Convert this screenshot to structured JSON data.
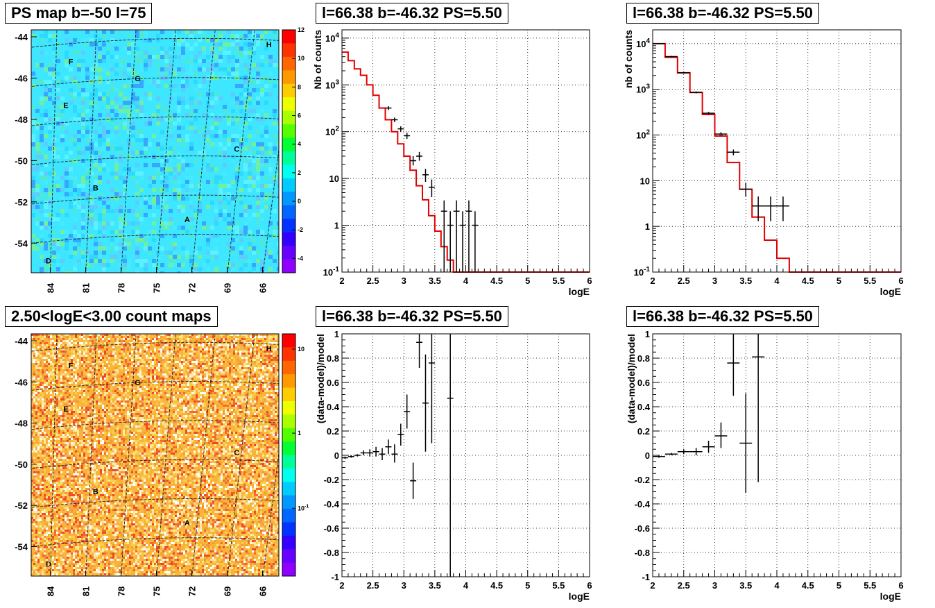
{
  "titles": {
    "map_top": "PS map b=-50 l=75",
    "map_bottom": "2.50<logE<3.00 count maps",
    "spec1": "l=66.38 b=-46.32 PS=5.50",
    "spec2": "l=66.38 b=-46.32 PS=5.50",
    "res1": "l=66.38 b=-46.32 PS=5.50",
    "res2": "l=66.38 b=-46.32 PS=5.50"
  },
  "colors": {
    "model": "#e00000",
    "data": "#000000",
    "map_top_bg": "#3ee6ff",
    "map_bottom_bg": "#f9b23a"
  },
  "chart_data": [
    {
      "id": "map_top",
      "type": "heatmap",
      "title": "PS map b=-50 l=75",
      "x_ticks": [
        "84",
        "81",
        "78",
        "75",
        "72",
        "69",
        "66"
      ],
      "y_ticks": [
        "-44",
        "-46",
        "-48",
        "-50",
        "-52",
        "-54"
      ],
      "colorbar_ticks": [
        "12",
        "10",
        "8",
        "6",
        "4",
        "2",
        "0",
        "-2",
        "-4"
      ],
      "colorbar_range": [
        -5,
        12
      ],
      "markers": [
        "A",
        "B",
        "C",
        "D",
        "E",
        "F",
        "G",
        "H"
      ]
    },
    {
      "id": "spec1",
      "type": "line",
      "title": "l=66.38 b=-46.32 PS=5.50",
      "xlabel": "logE",
      "ylabel": "Nb of counts",
      "xlim": [
        2,
        6
      ],
      "ylim": [
        0.1,
        15000
      ],
      "ylog": true,
      "x_ticks": [
        "2",
        "2.5",
        "3",
        "3.5",
        "4",
        "4.5",
        "5",
        "5.5",
        "6"
      ],
      "y_ticks": [
        {
          "v": 0.1,
          "label": "10^-1"
        },
        {
          "v": 1,
          "label": "1"
        },
        {
          "v": 10,
          "label": "10"
        },
        {
          "v": 100,
          "label": "10^2"
        },
        {
          "v": 1000,
          "label": "10^3"
        },
        {
          "v": 10000,
          "label": "10^4"
        }
      ],
      "model_edges": [
        2.0,
        2.1,
        2.2,
        2.3,
        2.4,
        2.5,
        2.6,
        2.7,
        2.8,
        2.9,
        3.0,
        3.1,
        3.2,
        3.3,
        3.4,
        3.5,
        3.6,
        3.7,
        3.8,
        3.9,
        4.0,
        4.1,
        4.2,
        6.0
      ],
      "model_values": [
        5000,
        3300,
        2200,
        1600,
        1000,
        600,
        320,
        180,
        100,
        55,
        30,
        15,
        7,
        3.5,
        1.6,
        0.75,
        0.35,
        0.18,
        0.1,
        0.1,
        0.1,
        0.1,
        0.1
      ],
      "data_points": [
        {
          "x": 2.75,
          "y": 320,
          "lo": 290,
          "hi": 350
        },
        {
          "x": 2.85,
          "y": 180,
          "lo": 160,
          "hi": 200
        },
        {
          "x": 2.95,
          "y": 115,
          "lo": 100,
          "hi": 130
        },
        {
          "x": 3.05,
          "y": 82,
          "lo": 70,
          "hi": 95
        },
        {
          "x": 3.15,
          "y": 24,
          "lo": 19,
          "hi": 30
        },
        {
          "x": 3.25,
          "y": 30,
          "lo": 24,
          "hi": 37
        },
        {
          "x": 3.35,
          "y": 12,
          "lo": 8.5,
          "hi": 16
        },
        {
          "x": 3.45,
          "y": 6.5,
          "lo": 4,
          "hi": 9.5
        },
        {
          "x": 3.65,
          "y": 2,
          "lo": 0.1,
          "hi": 3.4
        },
        {
          "x": 3.75,
          "y": 1,
          "lo": 0.1,
          "hi": 2
        },
        {
          "x": 3.85,
          "y": 2,
          "lo": 0.1,
          "hi": 3.4
        },
        {
          "x": 3.95,
          "y": 1,
          "lo": 0.1,
          "hi": 2
        },
        {
          "x": 4.05,
          "y": 2,
          "lo": 0.1,
          "hi": 3.4
        },
        {
          "x": 4.15,
          "y": 1,
          "lo": 0.1,
          "hi": 2
        }
      ],
      "data_half_width": 0.05
    },
    {
      "id": "spec2",
      "type": "line",
      "title": "l=66.38 b=-46.32 PS=5.50",
      "xlabel": "logE",
      "ylabel": "nb of counts",
      "xlim": [
        2,
        6
      ],
      "ylim": [
        0.1,
        20000
      ],
      "ylog": true,
      "x_ticks": [
        "2",
        "2.5",
        "3",
        "3.5",
        "4",
        "4.5",
        "5",
        "5.5",
        "6"
      ],
      "y_ticks": [
        {
          "v": 0.1,
          "label": "10^-1"
        },
        {
          "v": 1,
          "label": "1"
        },
        {
          "v": 10,
          "label": "10"
        },
        {
          "v": 100,
          "label": "10^2"
        },
        {
          "v": 1000,
          "label": "10^3"
        },
        {
          "v": 10000,
          "label": "10^4"
        }
      ],
      "model_edges": [
        2.0,
        2.2,
        2.4,
        2.6,
        2.8,
        3.0,
        3.2,
        3.4,
        3.6,
        3.8,
        4.0,
        4.2,
        6.0
      ],
      "model_values": [
        10000,
        5000,
        2300,
        850,
        280,
        95,
        25,
        6.5,
        1.6,
        0.5,
        0.2,
        0.1
      ],
      "data_points": [
        {
          "x": 2.1,
          "y": 10000,
          "lo": 9700,
          "hi": 10300
        },
        {
          "x": 2.3,
          "y": 5200,
          "lo": 5000,
          "hi": 5400
        },
        {
          "x": 2.5,
          "y": 2300,
          "lo": 2200,
          "hi": 2400
        },
        {
          "x": 2.7,
          "y": 860,
          "lo": 820,
          "hi": 900
        },
        {
          "x": 2.9,
          "y": 300,
          "lo": 280,
          "hi": 320
        },
        {
          "x": 3.1,
          "y": 105,
          "lo": 95,
          "hi": 115
        },
        {
          "x": 3.3,
          "y": 42,
          "lo": 36,
          "hi": 48
        },
        {
          "x": 3.5,
          "y": 6.5,
          "lo": 4.5,
          "hi": 9
        },
        {
          "x": 3.7,
          "y": 2.8,
          "lo": 1.3,
          "hi": 4.5
        },
        {
          "x": 3.9,
          "y": 2.8,
          "lo": 1.3,
          "hi": 4.5
        },
        {
          "x": 4.1,
          "y": 2.8,
          "lo": 1.3,
          "hi": 4.5
        }
      ],
      "data_half_width": 0.1
    },
    {
      "id": "map_bottom",
      "type": "heatmap",
      "title": "2.50<logE<3.00 count maps",
      "x_ticks": [
        "84",
        "81",
        "78",
        "75",
        "72",
        "69",
        "66"
      ],
      "y_ticks": [
        "-44",
        "-46",
        "-48",
        "-50",
        "-52",
        "-54"
      ],
      "colorbar_ticks": [
        {
          "label": "10",
          "exp": ""
        },
        {
          "label": "1",
          "exp": ""
        },
        {
          "label": "10",
          "exp": "-1"
        }
      ],
      "markers": [
        "A",
        "B",
        "C",
        "D",
        "E",
        "F",
        "G",
        "H"
      ]
    },
    {
      "id": "res1",
      "type": "scatter",
      "title": "l=66.38 b=-46.32 PS=5.50",
      "xlabel": "logE",
      "ylabel": "(data-model)/model",
      "xlim": [
        2,
        6
      ],
      "ylim": [
        -1,
        1
      ],
      "x_ticks": [
        "2",
        "2.5",
        "3",
        "3.5",
        "4",
        "4.5",
        "5",
        "5.5",
        "6"
      ],
      "y_ticks": [
        "1",
        "0.8",
        "0.6",
        "0.4",
        "0.2",
        "0",
        "-0.2",
        "-0.4",
        "-0.6",
        "-0.8",
        "-1"
      ],
      "points": [
        {
          "x": 2.05,
          "y": -0.02,
          "lo": -0.03,
          "hi": -0.01
        },
        {
          "x": 2.15,
          "y": -0.01,
          "lo": -0.02,
          "hi": 0.0
        },
        {
          "x": 2.25,
          "y": 0.0,
          "lo": -0.01,
          "hi": 0.01
        },
        {
          "x": 2.35,
          "y": 0.02,
          "lo": 0.0,
          "hi": 0.04
        },
        {
          "x": 2.45,
          "y": 0.02,
          "lo": -0.01,
          "hi": 0.05
        },
        {
          "x": 2.55,
          "y": 0.03,
          "lo": -0.01,
          "hi": 0.07
        },
        {
          "x": 2.65,
          "y": 0.01,
          "lo": -0.04,
          "hi": 0.06
        },
        {
          "x": 2.75,
          "y": 0.07,
          "lo": 0.01,
          "hi": 0.13
        },
        {
          "x": 2.85,
          "y": 0.01,
          "lo": -0.06,
          "hi": 0.09
        },
        {
          "x": 2.95,
          "y": 0.17,
          "lo": 0.08,
          "hi": 0.26
        },
        {
          "x": 3.05,
          "y": 0.36,
          "lo": 0.22,
          "hi": 0.5
        },
        {
          "x": 3.15,
          "y": -0.21,
          "lo": -0.36,
          "hi": -0.06
        },
        {
          "x": 3.25,
          "y": 0.93,
          "lo": 0.72,
          "hi": 1.2
        },
        {
          "x": 3.35,
          "y": 0.43,
          "lo": 0.03,
          "hi": 0.83
        },
        {
          "x": 3.45,
          "y": 0.76,
          "lo": 0.1,
          "hi": 1.4
        },
        {
          "x": 3.75,
          "y": 0.47,
          "lo": -1.2,
          "hi": 2.0
        }
      ],
      "half_width": 0.05
    },
    {
      "id": "res2",
      "type": "scatter",
      "title": "l=66.38 b=-46.32 PS=5.50",
      "xlabel": "logE",
      "ylabel": "(data-model)/model",
      "xlim": [
        2,
        6
      ],
      "ylim": [
        -1,
        1
      ],
      "x_ticks": [
        "2",
        "2.5",
        "3",
        "3.5",
        "4",
        "4.5",
        "5",
        "5.5",
        "6"
      ],
      "y_ticks": [
        "1",
        "0.8",
        "0.6",
        "0.4",
        "0.2",
        "0",
        "-0.2",
        "-0.4",
        "-0.6",
        "-0.8",
        "-1"
      ],
      "points": [
        {
          "x": 2.1,
          "y": -0.01,
          "lo": -0.02,
          "hi": 0.0
        },
        {
          "x": 2.3,
          "y": 0.01,
          "lo": 0.0,
          "hi": 0.02
        },
        {
          "x": 2.5,
          "y": 0.03,
          "lo": 0.01,
          "hi": 0.05
        },
        {
          "x": 2.7,
          "y": 0.03,
          "lo": 0.0,
          "hi": 0.06
        },
        {
          "x": 2.9,
          "y": 0.07,
          "lo": 0.02,
          "hi": 0.12
        },
        {
          "x": 3.1,
          "y": 0.16,
          "lo": 0.06,
          "hi": 0.27
        },
        {
          "x": 3.3,
          "y": 0.76,
          "lo": 0.49,
          "hi": 1.05
        },
        {
          "x": 3.5,
          "y": 0.1,
          "lo": -0.31,
          "hi": 0.51
        },
        {
          "x": 3.7,
          "y": 0.81,
          "lo": -0.22,
          "hi": 1.7
        }
      ],
      "half_width": 0.1
    }
  ]
}
